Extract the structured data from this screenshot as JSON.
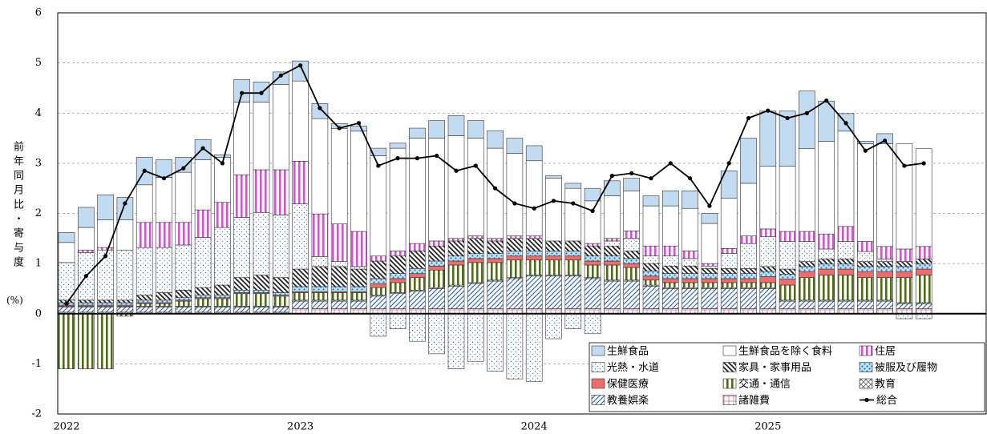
{
  "chart_data": {
    "type": "bar",
    "stacked": true,
    "y_label": "前年同月比・寄与度",
    "y_unit": "(%)",
    "categories": [
      "2022",
      null,
      null,
      null,
      null,
      null,
      null,
      null,
      null,
      null,
      null,
      null,
      "2023",
      null,
      null,
      null,
      null,
      null,
      null,
      null,
      null,
      null,
      null,
      null,
      "2024",
      null,
      null,
      null,
      null,
      null,
      null,
      null,
      null,
      null,
      null,
      null,
      "2025",
      null,
      null,
      null,
      null,
      null,
      null,
      null,
      null
    ],
    "ylim": [
      -2,
      6
    ],
    "yticks": [
      -2,
      -1,
      0,
      1,
      2,
      3,
      4,
      5,
      6
    ],
    "grid": true,
    "legend": "lower-right",
    "series": [
      {
        "name": "生鮮食品",
        "color": "#c3dbf0",
        "pattern": "solid",
        "values": [
          0.2,
          0.4,
          0.5,
          0.45,
          0.55,
          0.35,
          0.3,
          0.4,
          0.05,
          0.45,
          0.4,
          0.25,
          0.4,
          0.3,
          0.1,
          0.1,
          0.15,
          0.1,
          0.2,
          0.35,
          0.4,
          0.35,
          0.35,
          0.3,
          0.3,
          0.05,
          0.1,
          0.25,
          0.3,
          0.25,
          0.2,
          0.3,
          0.35,
          0.2,
          0.55,
          0.9,
          1.1,
          1.1,
          1.15,
          0.8,
          0.35,
          0.05,
          0.2,
          0,
          0
        ]
      },
      {
        "name": "生鮮食品を除く食料",
        "color": "#ffffff",
        "pattern": "solid",
        "values": [
          0.4,
          0.45,
          0.55,
          0.6,
          0.75,
          0.9,
          1.0,
          1.0,
          0.9,
          1.45,
          1.35,
          1.7,
          1.6,
          1.9,
          1.9,
          2.0,
          2.0,
          2.05,
          2.1,
          2.05,
          2.05,
          1.95,
          1.8,
          1.65,
          1.5,
          1.25,
          1.05,
          0.85,
          0.85,
          0.8,
          0.8,
          0.8,
          0.85,
          0.8,
          1.0,
          1.05,
          1.25,
          1.3,
          1.65,
          1.85,
          1.9,
          1.95,
          2.05,
          2.1,
          1.95
        ]
      },
      {
        "name": "住居",
        "color": "#d94fd9",
        "pattern": "vlines",
        "values": [
          0,
          0.05,
          0.05,
          0,
          0.5,
          0.5,
          0.45,
          0.55,
          0.5,
          0.85,
          0.85,
          0.9,
          0.85,
          0.85,
          0.75,
          0.7,
          0.1,
          0.1,
          0.15,
          0.1,
          0.05,
          0.05,
          0.05,
          0.05,
          0.05,
          0,
          0,
          0.05,
          0.05,
          0.15,
          0.2,
          0.2,
          0.15,
          0.05,
          0.1,
          0.15,
          0.15,
          0.2,
          0.2,
          0.3,
          0.3,
          0.2,
          0.25,
          0.25,
          0.25
        ]
      },
      {
        "name": "光熱・水道",
        "color": "#6a7fa8",
        "pattern": "dots",
        "values": [
          0.75,
          0.95,
          1.0,
          1.0,
          0.95,
          0.9,
          0.9,
          1.0,
          1.15,
          1.2,
          1.25,
          1.25,
          1.3,
          0.2,
          0.1,
          0.05,
          -0.45,
          -0.3,
          -0.55,
          -0.8,
          -1.1,
          -0.95,
          -1.15,
          -1.3,
          -1.35,
          -0.5,
          -0.3,
          -0.4,
          0.1,
          0.25,
          0.15,
          0.2,
          0.15,
          0.05,
          0.3,
          0.5,
          0.6,
          0.55,
          0.4,
          0.2,
          0.35,
          0.2,
          0.05,
          -0.1,
          -0.1
        ]
      },
      {
        "name": "家具・家事用品",
        "color": "#222222",
        "pattern": "hatch",
        "values": [
          0.05,
          0.05,
          0.05,
          0.05,
          0.1,
          0.15,
          0.15,
          0.15,
          0.2,
          0.25,
          0.3,
          0.3,
          0.35,
          0.4,
          0.4,
          0.35,
          0.35,
          0.35,
          0.35,
          0.3,
          0.3,
          0.3,
          0.25,
          0.25,
          0.25,
          0.2,
          0.2,
          0.2,
          0.2,
          0.15,
          0.15,
          0.15,
          0.15,
          0.1,
          0.1,
          0.1,
          0.1,
          0.1,
          0.1,
          0.1,
          0.1,
          0.1,
          0.1,
          0.1,
          0.1
        ]
      },
      {
        "name": "被服及び履物",
        "color": "#1f78c8",
        "pattern": "bigdots",
        "values": [
          0.05,
          0.05,
          0.05,
          0.05,
          0.05,
          0.05,
          0.05,
          0.05,
          0.05,
          0.05,
          0.05,
          0.05,
          0.1,
          0.1,
          0.1,
          0.1,
          0.1,
          0.1,
          0.1,
          0.1,
          0.1,
          0.1,
          0.1,
          0.1,
          0.1,
          0.1,
          0.1,
          0.1,
          0.1,
          0.1,
          0.1,
          0.1,
          0.1,
          0.1,
          0.1,
          0.1,
          0.1,
          0.1,
          0.1,
          0.1,
          0.1,
          0.1,
          0.1,
          0.1,
          0.1
        ]
      },
      {
        "name": "保健医療",
        "color": "#f26b6b",
        "pattern": "solid",
        "values": [
          0.02,
          0.02,
          0.02,
          0.02,
          0.02,
          0.02,
          0.02,
          0.02,
          0.02,
          0.02,
          0.02,
          0.02,
          0.02,
          0.02,
          0.02,
          0.02,
          0.08,
          0.08,
          0.08,
          0.08,
          0.08,
          0.08,
          0.08,
          0.08,
          0.08,
          0.08,
          0.08,
          0.08,
          0.08,
          0.08,
          0.08,
          0.08,
          0.08,
          0.08,
          0.08,
          0.08,
          0.12,
          0.12,
          0.12,
          0.12,
          0.12,
          0.12,
          0.12,
          0.12,
          0.12
        ]
      },
      {
        "name": "交通・通信",
        "color": "#4f6e12",
        "pattern": "vlines",
        "values": [
          -1.1,
          -1.1,
          -1.1,
          -0.05,
          0.05,
          0.05,
          0.1,
          0.15,
          0.15,
          0.25,
          0.25,
          0.2,
          0.15,
          0.15,
          0.15,
          0.15,
          0.15,
          0.2,
          0.25,
          0.35,
          0.4,
          0.4,
          0.35,
          0.35,
          0.3,
          0.3,
          0.3,
          0.25,
          0.3,
          0.25,
          0.1,
          0.1,
          0.1,
          0.1,
          0.1,
          0.1,
          0.1,
          0.3,
          0.45,
          0.5,
          0.5,
          0.45,
          0.45,
          0.5,
          0.55
        ]
      },
      {
        "name": "教育",
        "color": "#666666",
        "pattern": "cross",
        "values": [
          0.02,
          0.02,
          0.02,
          0.02,
          0.02,
          0.02,
          0.02,
          0.02,
          0.02,
          0.02,
          0.02,
          0.02,
          0.02,
          0.02,
          0.02,
          0.02,
          0.02,
          0.02,
          0.02,
          0.02,
          0.02,
          0.02,
          0.02,
          0.02,
          0.02,
          0.02,
          0.02,
          0.02,
          0.02,
          0.02,
          0.02,
          0.02,
          0.02,
          0.02,
          0.02,
          0.02,
          0.02,
          0.02,
          0.02,
          0.02,
          0.02,
          0.02,
          0.02,
          0.02,
          0.02
        ]
      },
      {
        "name": "教養娯楽",
        "color": "#3d6ea8",
        "pattern": "diag",
        "values": [
          0.1,
          0.1,
          0.1,
          0.1,
          0.1,
          0.1,
          0.1,
          0.1,
          0.1,
          0.1,
          0.1,
          0.1,
          0.15,
          0.15,
          0.15,
          0.15,
          0.25,
          0.3,
          0.35,
          0.4,
          0.45,
          0.5,
          0.55,
          0.6,
          0.65,
          0.65,
          0.65,
          0.6,
          0.55,
          0.55,
          0.45,
          0.4,
          0.4,
          0.4,
          0.4,
          0.4,
          0.4,
          0.15,
          0.15,
          0.15,
          0.15,
          0.15,
          0.15,
          0.1,
          0.1
        ]
      },
      {
        "name": "諸雑費",
        "color": "#cc6f95",
        "pattern": "grid",
        "values": [
          0.03,
          0.03,
          0.03,
          0.03,
          0.03,
          0.03,
          0.03,
          0.03,
          0.03,
          0.03,
          0.03,
          0.03,
          0.1,
          0.1,
          0.1,
          0.1,
          0.1,
          0.1,
          0.1,
          0.1,
          0.1,
          0.1,
          0.1,
          0.1,
          0.1,
          0.1,
          0.1,
          0.1,
          0.1,
          0.1,
          0.1,
          0.1,
          0.1,
          0.1,
          0.1,
          0.1,
          0.1,
          0.1,
          0.1,
          0.1,
          0.1,
          0.1,
          0.1,
          0.1,
          0.1
        ]
      }
    ],
    "line_series": {
      "name": "総合",
      "color": "#000000",
      "values": [
        0.2,
        0.75,
        1.15,
        2.2,
        2.85,
        2.7,
        2.9,
        3.3,
        3.0,
        4.4,
        4.4,
        4.75,
        4.95,
        4.1,
        3.7,
        3.8,
        2.95,
        3.1,
        3.1,
        3.15,
        2.85,
        2.95,
        2.5,
        2.2,
        2.1,
        2.25,
        2.2,
        2.05,
        2.75,
        2.8,
        2.7,
        3.0,
        2.7,
        2.15,
        3.0,
        3.9,
        4.05,
        3.9,
        4.0,
        4.25,
        3.8,
        3.25,
        3.45,
        2.95,
        3.0
      ]
    }
  }
}
